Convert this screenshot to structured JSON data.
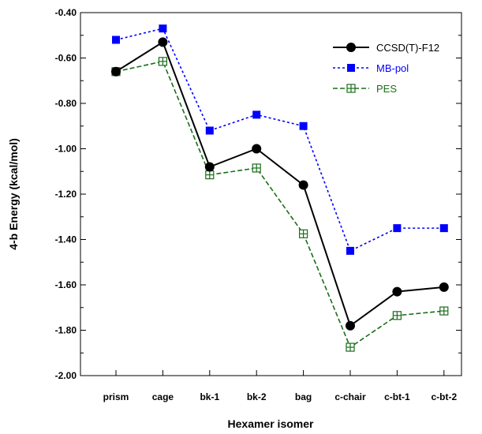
{
  "chart_data": {
    "type": "line",
    "xlabel": "Hexamer isomer",
    "ylabel": "4-b Energy (kcal/mol)",
    "categories": [
      "prism",
      "cage",
      "bk-1",
      "bk-2",
      "bag",
      "c-chair",
      "c-bt-1",
      "c-bt-2"
    ],
    "ylim": [
      -2.0,
      -0.4
    ],
    "yticks": [
      "-0.40",
      "-0.60",
      "-0.80",
      "-1.00",
      "-1.20",
      "-1.40",
      "-1.60",
      "-1.80",
      "-2.00"
    ],
    "legend_position": "top-right",
    "grid": false,
    "series": [
      {
        "name": "CCSD(T)-F12",
        "color": "#000000",
        "line": "solid",
        "marker": "circle",
        "values": [
          -0.66,
          -0.53,
          -1.08,
          -1.0,
          -1.16,
          -1.78,
          -1.63,
          -1.61
        ]
      },
      {
        "name": "MB-pol",
        "color": "#0000ff",
        "line": "dotted",
        "marker": "square",
        "values": [
          -0.52,
          -0.47,
          -0.92,
          -0.85,
          -0.9,
          -1.45,
          -1.35,
          -1.35
        ]
      },
      {
        "name": "PES",
        "color": "#1a6e1a",
        "line": "dashed",
        "marker": "square-plus",
        "values": [
          -0.66,
          -0.615,
          -1.115,
          -1.085,
          -1.375,
          -1.875,
          -1.735,
          -1.715
        ]
      }
    ]
  }
}
